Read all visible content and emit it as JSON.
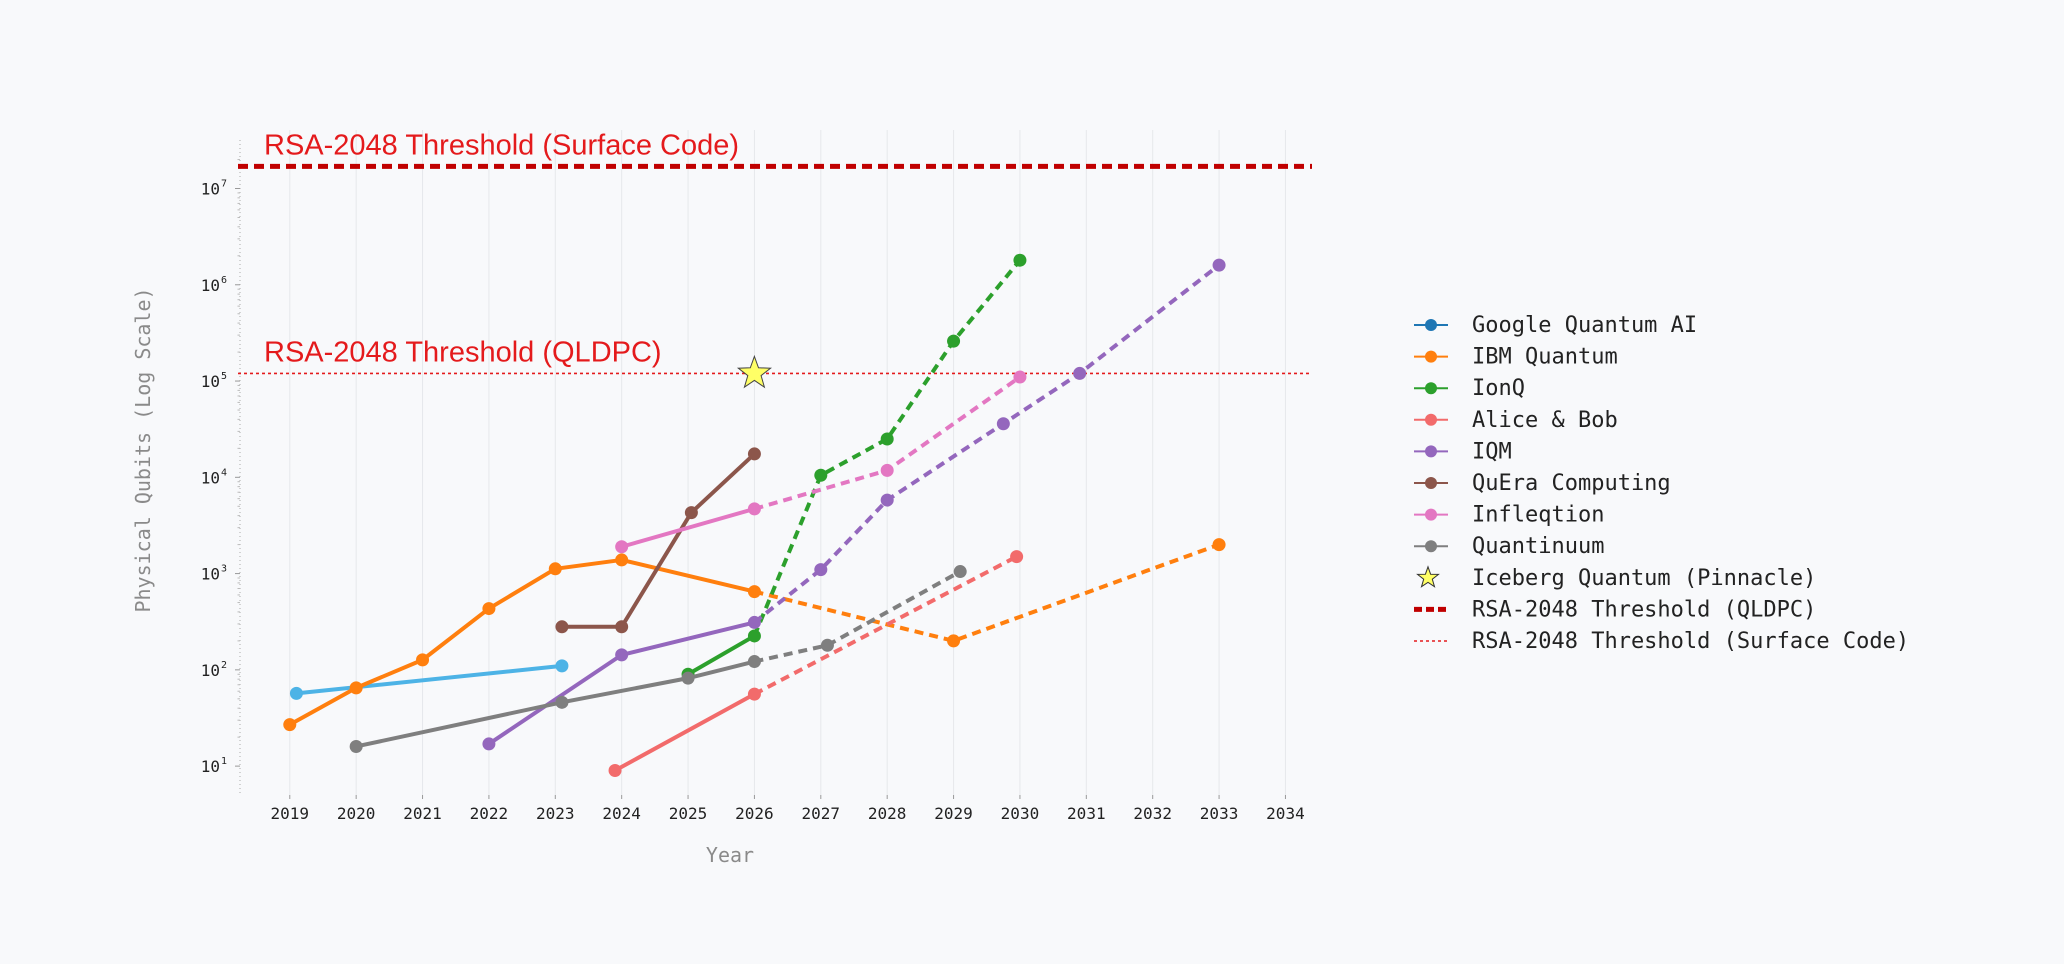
{
  "chart_data": {
    "type": "line",
    "xlabel": "Year",
    "ylabel": "Physical Qubits (Log Scale)",
    "yscale": "log",
    "xlim": [
      2018.25,
      2034.4
    ],
    "ylim_log10": [
      0.7,
      7.4
    ],
    "x_ticks": [
      2019,
      2020,
      2021,
      2022,
      2023,
      2024,
      2025,
      2026,
      2027,
      2028,
      2029,
      2030,
      2031,
      2032,
      2033,
      2034
    ],
    "y_ticks": [
      {
        "base": "10",
        "exp": "1",
        "v": 10
      },
      {
        "base": "10",
        "exp": "2",
        "v": 100
      },
      {
        "base": "10",
        "exp": "3",
        "v": 1000
      },
      {
        "base": "10",
        "exp": "4",
        "v": 10000
      },
      {
        "base": "10",
        "exp": "5",
        "v": 100000
      },
      {
        "base": "10",
        "exp": "6",
        "v": 1000000
      },
      {
        "base": "10",
        "exp": "7",
        "v": 10000000
      }
    ],
    "grid": "vertical",
    "legend_position": "right",
    "series": [
      {
        "name": "Google Quantum AI",
        "legend_color": "#1f77b4",
        "color": "#4db3e6",
        "solid": [
          [
            2019.1,
            57
          ],
          [
            2023.1,
            110
          ]
        ],
        "dashed": []
      },
      {
        "name": "IBM Quantum",
        "color": "#ff7f0e",
        "solid": [
          [
            2019,
            27
          ],
          [
            2020,
            65
          ],
          [
            2021,
            127
          ],
          [
            2022,
            433
          ],
          [
            2023,
            1121
          ],
          [
            2024,
            1386
          ],
          [
            2026,
            650
          ]
        ],
        "dashed": [
          [
            2026,
            650
          ],
          [
            2029,
            200
          ],
          [
            2033,
            2000
          ]
        ]
      },
      {
        "name": "IonQ",
        "color": "#2ca02c",
        "solid": [
          [
            2025,
            90
          ],
          [
            2026,
            225
          ]
        ],
        "dashed": [
          [
            2026,
            225
          ],
          [
            2027,
            10500
          ],
          [
            2028,
            25000
          ],
          [
            2029,
            260000
          ],
          [
            2030,
            1800000
          ]
        ]
      },
      {
        "name": "Alice & Bob",
        "color": "#f26b6b",
        "solid": [
          [
            2023.9,
            9
          ],
          [
            2026,
            56
          ]
        ],
        "dashed": [
          [
            2026,
            56
          ],
          [
            2029.95,
            1500
          ]
        ]
      },
      {
        "name": "IQM",
        "color": "#9467bd",
        "solid": [
          [
            2022,
            17
          ],
          [
            2024,
            143
          ],
          [
            2026,
            311
          ]
        ],
        "dashed": [
          [
            2026,
            311
          ],
          [
            2027,
            1100
          ],
          [
            2028,
            5800
          ],
          [
            2029.75,
            36000
          ],
          [
            2030.9,
            120000
          ],
          [
            2033,
            1600000
          ]
        ]
      },
      {
        "name": "QuEra Computing",
        "color": "#8c564b",
        "solid": [
          [
            2023.1,
            280
          ],
          [
            2024,
            280
          ],
          [
            2025.05,
            4300
          ],
          [
            2026,
            17500
          ]
        ],
        "dashed": []
      },
      {
        "name": "Infleqtion",
        "color": "#e377c2",
        "solid": [
          [
            2024,
            1900
          ],
          [
            2026,
            4700
          ]
        ],
        "dashed": [
          [
            2026,
            4700
          ],
          [
            2028,
            11800
          ],
          [
            2030,
            110000
          ]
        ]
      },
      {
        "name": "Quantinuum",
        "color": "#7f7f7f",
        "solid": [
          [
            2020,
            16
          ],
          [
            2023.1,
            46
          ],
          [
            2025,
            82
          ],
          [
            2026,
            122
          ]
        ],
        "dashed": [
          [
            2026,
            122
          ],
          [
            2027.1,
            180
          ],
          [
            2029.1,
            1050
          ]
        ]
      }
    ],
    "markers": [
      {
        "name": "Iceberg Quantum (Pinnacle)",
        "x": 2026,
        "y": 120000,
        "shape": "star",
        "color": "#ffff66"
      }
    ],
    "thresholds": [
      {
        "name": "RSA-2048 Threshold (QLDPC)",
        "y": 120000,
        "color": "#e41a1c",
        "style": "thin-dotted",
        "legend_color": "#c00000",
        "legend_style": "thick-dashed"
      },
      {
        "name": "RSA-2048 Threshold (Surface Code)",
        "y": 17000000,
        "color": "#c00000",
        "style": "thick-dashed",
        "legend_color": "#e41a1c",
        "legend_style": "thin-dotted"
      }
    ]
  }
}
